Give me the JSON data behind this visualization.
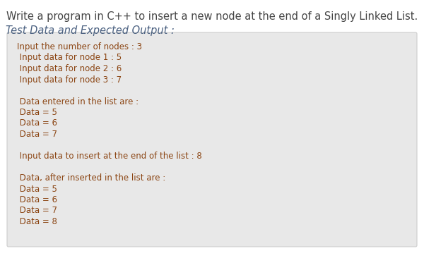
{
  "title_line1": "Write a program in C++ to insert a new node at the end of a Singly Linked List.",
  "title_line2": "Test Data and Expected Output :",
  "page_bg": "#ffffff",
  "box_bg": "#e8e8e8",
  "box_border": "#cccccc",
  "title1_color": "#444444",
  "title2_color": "#4a6080",
  "code_color": "#8b4513",
  "code_lines": [
    "Input the number of nodes : 3",
    " Input data for node 1 : 5",
    " Input data for node 2 : 6",
    " Input data for node 3 : 7",
    "",
    " Data entered in the list are :",
    " Data = 5",
    " Data = 6",
    " Data = 7",
    "",
    " Input data to insert at the end of the list : 8",
    "",
    " Data, after inserted in the list are :",
    " Data = 5",
    " Data = 6",
    " Data = 7",
    " Data = 8"
  ],
  "title1_fontsize": 10.5,
  "title2_fontsize": 10.5,
  "code_fontsize": 8.5,
  "fig_width": 6.0,
  "fig_height": 3.66,
  "dpi": 100
}
